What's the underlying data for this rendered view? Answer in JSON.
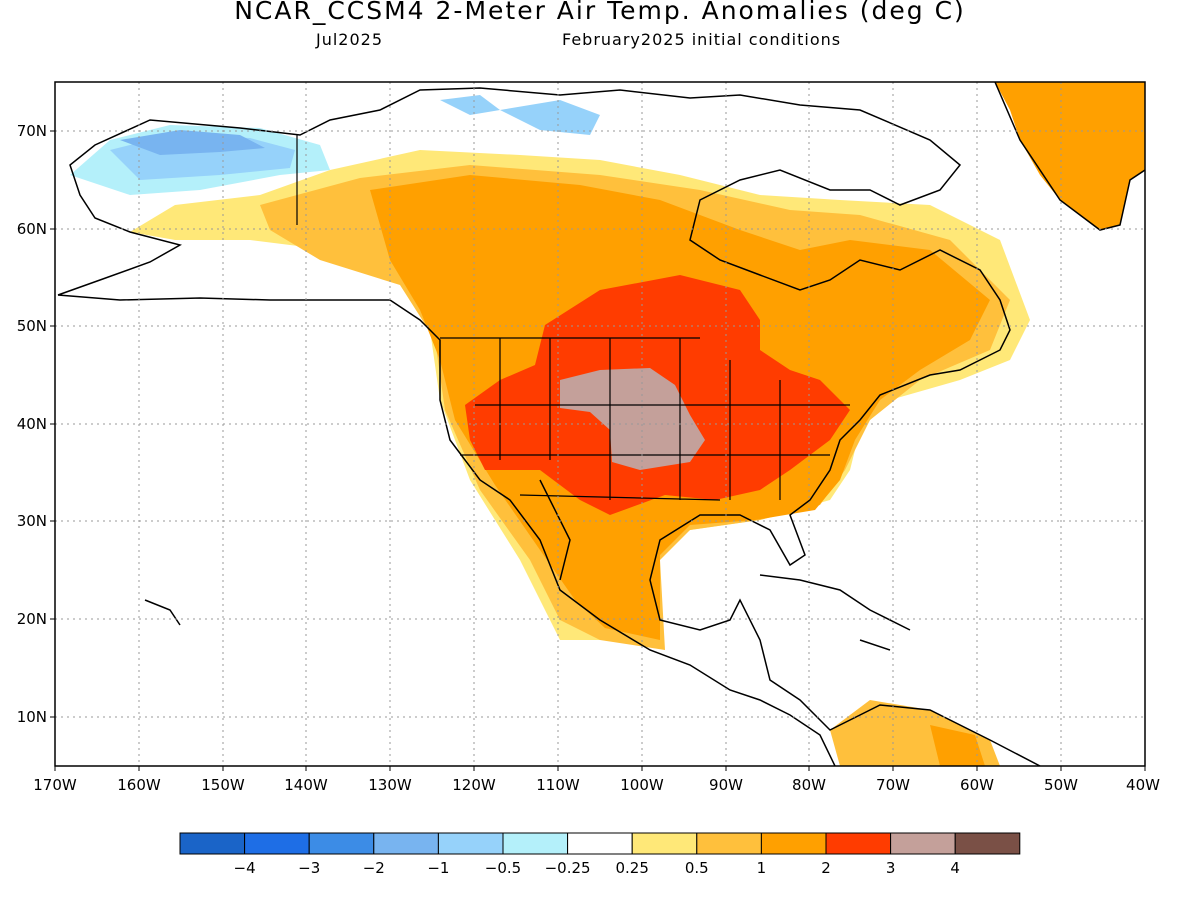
{
  "header": {
    "title": "NCAR_CCSM4 2-Meter Air Temp. Anomalies (deg C)",
    "valid_month": "Jul2025",
    "init": "February2025 initial conditions"
  },
  "map": {
    "lon_ticks": [
      "170W",
      "160W",
      "150W",
      "140W",
      "130W",
      "120W",
      "110W",
      "100W",
      "90W",
      "80W",
      "70W",
      "60W",
      "50W",
      "40W"
    ],
    "lat_ticks": [
      "70N",
      "60N",
      "50N",
      "40N",
      "30N",
      "20N",
      "10N"
    ],
    "lon_range": [
      -170,
      -40
    ],
    "lat_range": [
      5,
      75
    ],
    "anomaly_regions": [
      {
        "name": "Alaska / Yukon",
        "level": "-2 to -1"
      },
      {
        "name": "Canadian Arctic islands",
        "level": "-1 to -0.5"
      },
      {
        "name": "Northern Canada",
        "level": "0.5 to 1"
      },
      {
        "name": "Canadian Prairies",
        "level": "1 to 2"
      },
      {
        "name": "Northern Great Plains",
        "level": "2 to 3"
      },
      {
        "name": "Central Great Plains",
        "level": "3 to 4"
      },
      {
        "name": "Eastern United States",
        "level": "2 to 3"
      },
      {
        "name": "Southeastern United States",
        "level": "1 to 2"
      },
      {
        "name": "Mexico",
        "level": "1 to 2"
      },
      {
        "name": "Greenland",
        "level": "1 to 2"
      }
    ]
  },
  "colorbar": {
    "labels": [
      "-4",
      "-3",
      "-2",
      "-1",
      "-0.5",
      "-0.25",
      "0.25",
      "0.5",
      "1",
      "2",
      "3",
      "4"
    ],
    "colors": [
      "#1a64c8",
      "#1e6ee6",
      "#3c8ce6",
      "#78b4f0",
      "#96d2fa",
      "#b4f0fa",
      "#ffffff",
      "#ffe878",
      "#ffc03c",
      "#ffa000",
      "#ff3c00",
      "#c4a09a",
      "#7a5046"
    ]
  }
}
